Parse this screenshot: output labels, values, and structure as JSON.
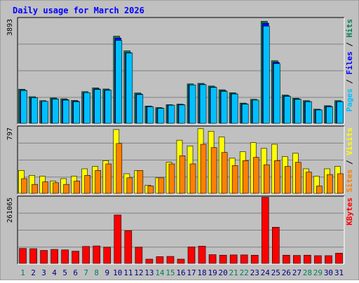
{
  "title": "Daily usage for March 2026",
  "colors": {
    "hits": "#00805c",
    "files": "#0000ff",
    "pages": "#00c0ff",
    "visits": "#ffff00",
    "sites": "#ff8000",
    "kbytes": "#ff0000",
    "weekday_label": "#000080",
    "weekend_label": "#00805c",
    "panel_bg": "#c0c0c0",
    "title": "#0000ff"
  },
  "chart_data": [
    {
      "type": "bar",
      "panel": "hits-files-pages",
      "max_label": "3893",
      "ylim": [
        0,
        3893
      ],
      "side_label": [
        {
          "text": "Pages",
          "color": "#00c0ff"
        },
        {
          "text": " / ",
          "color": "#000000"
        },
        {
          "text": "Files",
          "color": "#0000ff"
        },
        {
          "text": " / ",
          "color": "#000000"
        },
        {
          "text": "Hits",
          "color": "#00805c"
        }
      ],
      "categories": [
        "1",
        "2",
        "3",
        "4",
        "5",
        "6",
        "7",
        "8",
        "9",
        "10",
        "11",
        "12",
        "13",
        "14",
        "15",
        "16",
        "17",
        "18",
        "19",
        "20",
        "21",
        "22",
        "23",
        "24",
        "25",
        "26",
        "27",
        "28",
        "29",
        "30",
        "31"
      ],
      "series": [
        {
          "name": "Hits",
          "color": "#00805c",
          "values": [
            1280,
            1000,
            850,
            950,
            920,
            860,
            1190,
            1330,
            1290,
            3270,
            2720,
            1140,
            650,
            590,
            700,
            720,
            1480,
            1500,
            1400,
            1260,
            1150,
            760,
            900,
            3830,
            2350,
            1060,
            940,
            850,
            530,
            660,
            850
          ]
        },
        {
          "name": "Files",
          "color": "#0000ff",
          "values": [
            1240,
            960,
            820,
            920,
            890,
            830,
            1150,
            1290,
            1250,
            3200,
            2650,
            1100,
            630,
            570,
            680,
            700,
            1440,
            1460,
            1360,
            1220,
            1110,
            730,
            870,
            3760,
            2290,
            1030,
            910,
            820,
            510,
            640,
            820
          ]
        },
        {
          "name": "Pages",
          "color": "#00c0ff",
          "values": [
            1230,
            960,
            820,
            910,
            870,
            810,
            1150,
            1270,
            1240,
            3110,
            2640,
            1080,
            620,
            560,
            680,
            690,
            1440,
            1450,
            1350,
            1200,
            1100,
            720,
            870,
            3650,
            2240,
            1010,
            900,
            810,
            500,
            620,
            810
          ]
        }
      ]
    },
    {
      "type": "bar",
      "panel": "visits-sites",
      "max_label": "797",
      "ylim": [
        0,
        797
      ],
      "side_label": [
        {
          "text": "Sites",
          "color": "#ff8000"
        },
        {
          "text": " / ",
          "color": "#000000"
        },
        {
          "text": "Visits",
          "color": "#ffff00"
        }
      ],
      "categories": [
        "1",
        "2",
        "3",
        "4",
        "5",
        "6",
        "7",
        "8",
        "9",
        "10",
        "11",
        "12",
        "13",
        "14",
        "15",
        "16",
        "17",
        "18",
        "19",
        "20",
        "21",
        "22",
        "23",
        "24",
        "25",
        "26",
        "27",
        "28",
        "29",
        "30",
        "31"
      ],
      "series": [
        {
          "name": "Visits",
          "color": "#ffff00",
          "values": [
            280,
            220,
            210,
            150,
            180,
            210,
            300,
            330,
            400,
            780,
            240,
            280,
            100,
            190,
            380,
            650,
            580,
            790,
            760,
            690,
            430,
            510,
            620,
            550,
            600,
            450,
            490,
            300,
            210,
            300,
            330
          ]
        },
        {
          "name": "Sites",
          "color": "#ff8000",
          "values": [
            180,
            110,
            140,
            130,
            110,
            150,
            220,
            280,
            360,
            610,
            190,
            280,
            90,
            190,
            360,
            460,
            360,
            600,
            560,
            500,
            340,
            400,
            440,
            350,
            400,
            330,
            380,
            260,
            90,
            230,
            240
          ]
        }
      ]
    },
    {
      "type": "bar",
      "panel": "kbytes",
      "max_label": "261065",
      "ylim": [
        0,
        261065
      ],
      "side_label": [
        {
          "text": "KBytes",
          "color": "#ff0000"
        }
      ],
      "categories": [
        "1",
        "2",
        "3",
        "4",
        "5",
        "6",
        "7",
        "8",
        "9",
        "10",
        "11",
        "12",
        "13",
        "14",
        "15",
        "16",
        "17",
        "18",
        "19",
        "20",
        "21",
        "22",
        "23",
        "24",
        "25",
        "26",
        "27",
        "28",
        "29",
        "30",
        "31"
      ],
      "weekend_days": [
        "1",
        "7",
        "8",
        "14",
        "15",
        "21",
        "22",
        "28",
        "29"
      ],
      "series": [
        {
          "name": "KBytes",
          "color": "#ff0000",
          "values": [
            60000,
            59000,
            52000,
            56000,
            54000,
            49000,
            68000,
            70000,
            65000,
            194000,
            131000,
            65000,
            17000,
            27000,
            28000,
            17000,
            66000,
            69000,
            35000,
            33000,
            34000,
            34000,
            33000,
            265000,
            145000,
            33000,
            32000,
            33000,
            31000,
            31000,
            41000
          ]
        }
      ]
    }
  ]
}
